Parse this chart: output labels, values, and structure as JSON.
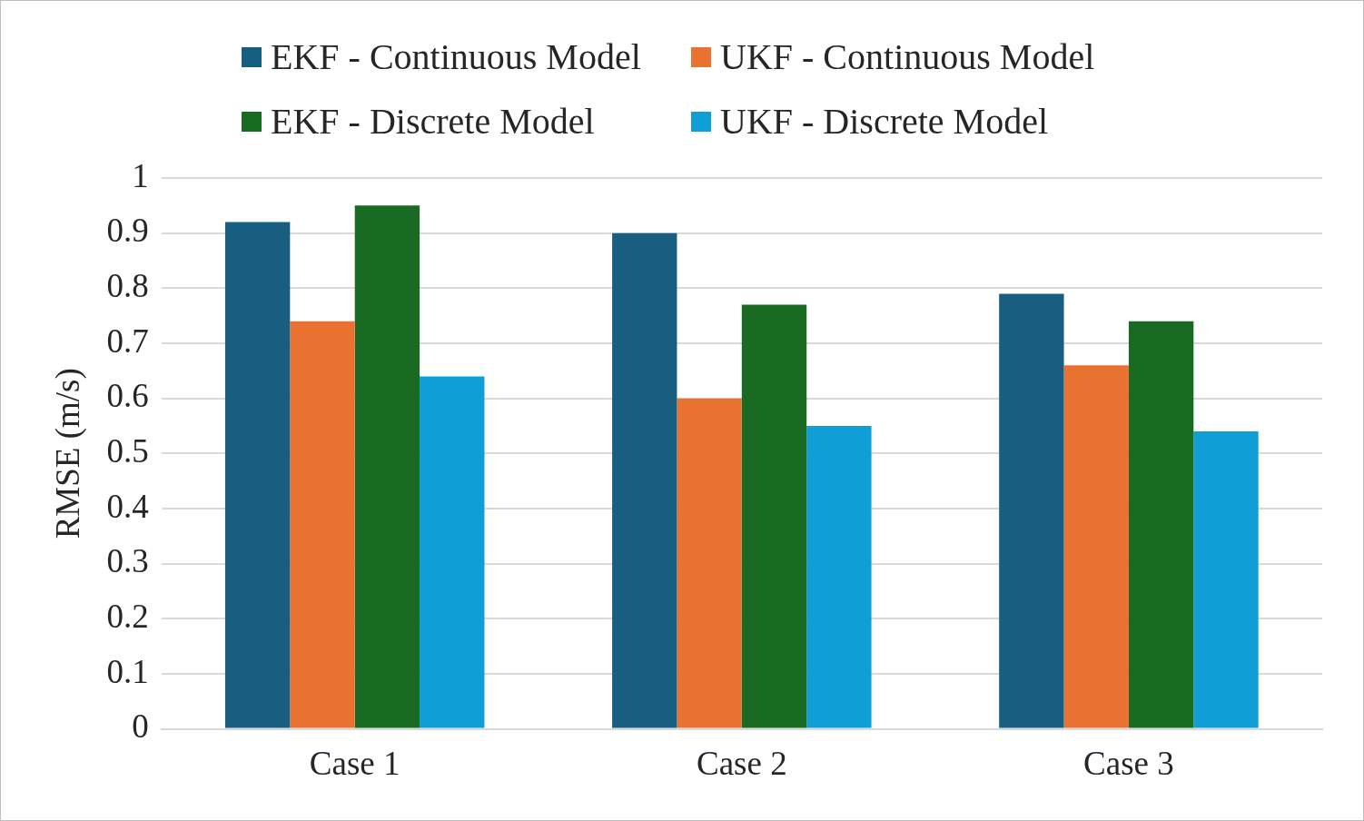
{
  "chart_data": {
    "type": "bar",
    "ylabel": "RMSE (m/s)",
    "categories": [
      "Case 1",
      "Case 2",
      "Case 3"
    ],
    "series": [
      {
        "name": "EKF - Continuous Model",
        "color": "#175e81",
        "values": [
          0.92,
          0.9,
          0.79
        ]
      },
      {
        "name": "UKF - Continuous Model",
        "color": "#e97132",
        "values": [
          0.74,
          0.6,
          0.66
        ]
      },
      {
        "name": "EKF - Discrete Model",
        "color": "#196b24",
        "values": [
          0.95,
          0.77,
          0.74
        ]
      },
      {
        "name": "UKF - Discrete Model",
        "color": "#0f9ed5",
        "values": [
          0.64,
          0.55,
          0.54
        ]
      }
    ],
    "ylim": [
      0,
      1
    ],
    "yticks": [
      0,
      0.1,
      0.2,
      0.3,
      0.4,
      0.5,
      0.6,
      0.7,
      0.8,
      0.9,
      1
    ],
    "grid": "y",
    "legend": "top"
  }
}
